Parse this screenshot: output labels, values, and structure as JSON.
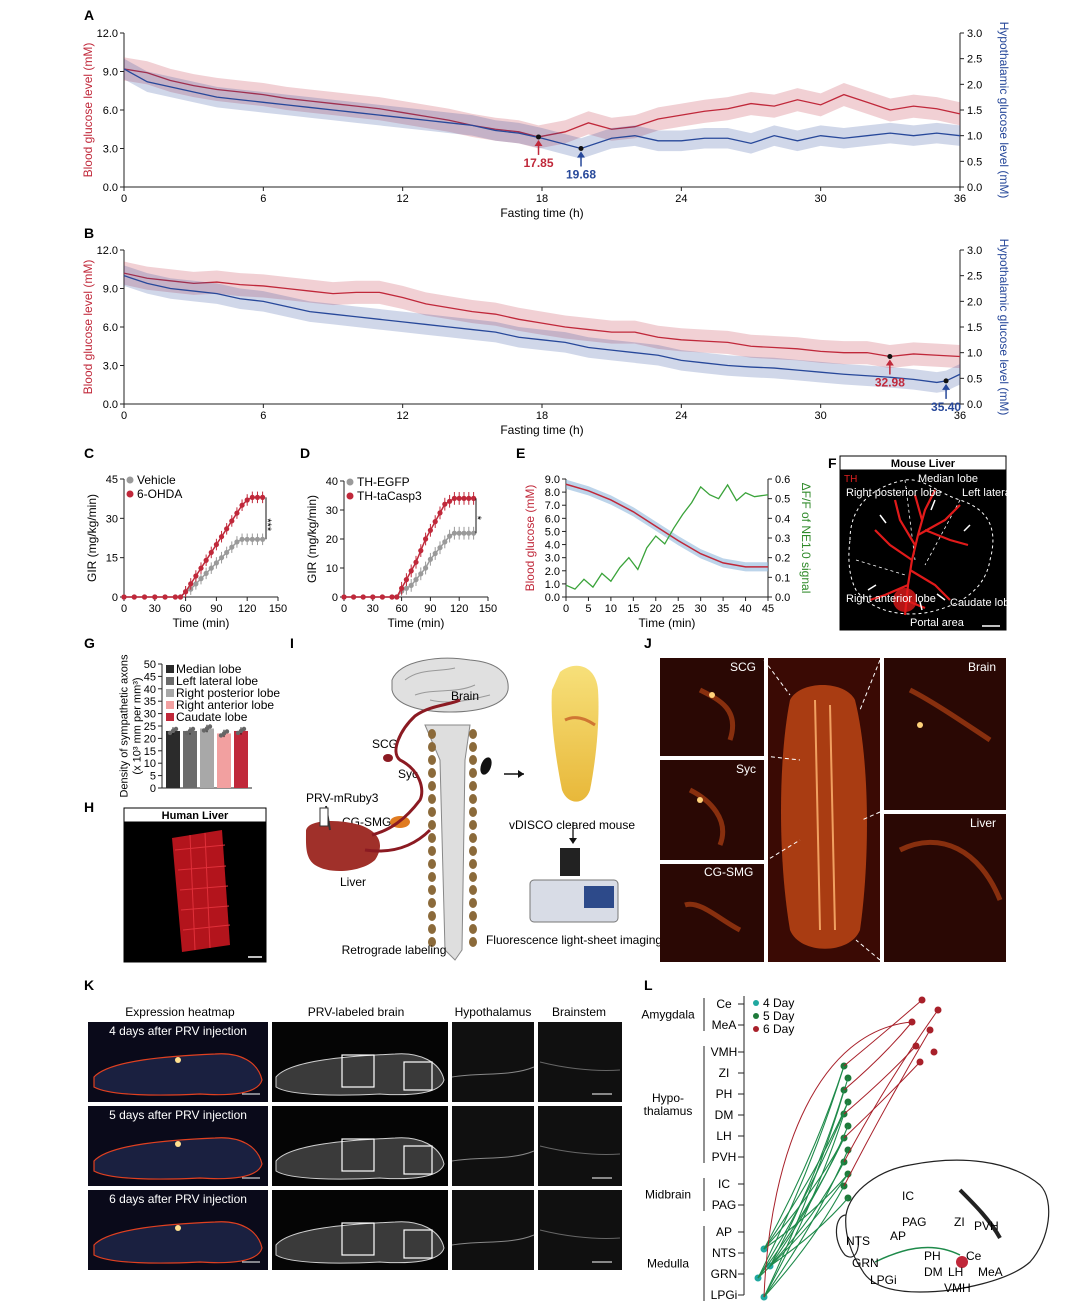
{
  "panels": {
    "A": "A",
    "B": "B",
    "C": "C",
    "D": "D",
    "E": "E",
    "F": "F",
    "G": "G",
    "H": "H",
    "I": "I",
    "J": "J",
    "K": "K",
    "L": "L"
  },
  "colors": {
    "red": "#c0283a",
    "blue": "#27489a",
    "green": "#2f8a2a",
    "grey": "#9a9a9a"
  },
  "chart_data": [
    {
      "id": "A",
      "type": "line",
      "xlabel": "Fasting time (h)",
      "ylabel": "Blood glucose level (mM)",
      "y2label": "Hypothalamic glucose level (mM)",
      "xticks": [
        "0",
        "6",
        "12",
        "18",
        "24",
        "30",
        "36"
      ],
      "yticks": [
        "0.0",
        "3.0",
        "6.0",
        "9.0",
        "12.0"
      ],
      "y2ticks": [
        "0.0",
        "0.5",
        "1.0",
        "1.5",
        "2.0",
        "2.5",
        "3.0"
      ],
      "xlim": [
        0,
        36
      ],
      "ylim": [
        0,
        12
      ],
      "y2lim": [
        0,
        3
      ],
      "series": [
        {
          "name": "Blood glucose",
          "axis": "left",
          "x": [
            0,
            1,
            2,
            3,
            4,
            5,
            6,
            7,
            8,
            9,
            10,
            11,
            12,
            13,
            14,
            15,
            16,
            17,
            17.85,
            19,
            20,
            21,
            22,
            23,
            24,
            25,
            26,
            27,
            28,
            29,
            30,
            31,
            32,
            33,
            34,
            35,
            36
          ],
          "values": [
            9.2,
            8.9,
            8.3,
            7.9,
            7.6,
            7.4,
            7.2,
            6.9,
            6.7,
            6.5,
            6.3,
            6.1,
            5.8,
            5.5,
            5.2,
            4.8,
            4.5,
            4.3,
            3.9,
            4.3,
            5.0,
            4.5,
            4.7,
            5.3,
            5.6,
            5.9,
            6.1,
            6.5,
            6.3,
            6.8,
            6.4,
            7.2,
            6.6,
            6.0,
            6.3,
            6.1,
            5.7
          ]
        },
        {
          "name": "Hypothalamic glucose",
          "axis": "right",
          "x": [
            0,
            1,
            2,
            3,
            4,
            5,
            6,
            7,
            8,
            9,
            10,
            11,
            12,
            13,
            14,
            15,
            16,
            17,
            18,
            19.68,
            21,
            22,
            23,
            24,
            25,
            26,
            27,
            28,
            29,
            30,
            31,
            32,
            33,
            34,
            35,
            36
          ],
          "values": [
            2.3,
            2.05,
            1.95,
            1.85,
            1.75,
            1.7,
            1.65,
            1.6,
            1.55,
            1.5,
            1.45,
            1.4,
            1.35,
            1.3,
            1.25,
            1.2,
            1.1,
            1.05,
            0.95,
            0.75,
            0.95,
            1.0,
            0.9,
            0.9,
            0.95,
            0.95,
            0.85,
            1.0,
            0.9,
            1.0,
            0.95,
            1.0,
            1.05,
            1.0,
            1.05,
            1.0
          ]
        }
      ],
      "annotations": [
        {
          "text": "17.85",
          "x": 17.85,
          "color": "red"
        },
        {
          "text": "19.68",
          "x": 19.68,
          "color": "blue"
        }
      ]
    },
    {
      "id": "B",
      "type": "line",
      "xlabel": "Fasting time (h)",
      "ylabel": "Blood glucose level (mM)",
      "y2label": "Hypothalamic glucose level (mM)",
      "xticks": [
        "0",
        "6",
        "12",
        "18",
        "24",
        "30",
        "36"
      ],
      "yticks": [
        "0.0",
        "3.0",
        "6.0",
        "9.0",
        "12.0"
      ],
      "y2ticks": [
        "0.0",
        "0.5",
        "1.0",
        "1.5",
        "2.0",
        "2.5",
        "3.0"
      ],
      "xlim": [
        0,
        36
      ],
      "ylim": [
        0,
        12
      ],
      "y2lim": [
        0,
        3
      ],
      "series": [
        {
          "name": "Blood glucose",
          "axis": "left",
          "x": [
            0,
            1,
            2,
            3,
            4,
            5,
            6,
            7,
            8,
            9,
            10,
            11,
            12,
            13,
            14,
            15,
            16,
            17,
            18,
            19,
            20,
            21,
            22,
            23,
            24,
            25,
            26,
            27,
            28,
            29,
            30,
            31,
            32,
            32.98,
            34,
            35,
            36
          ],
          "values": [
            10.2,
            9.8,
            9.6,
            9.4,
            9.5,
            9.3,
            9.2,
            9.0,
            8.8,
            8.6,
            8.7,
            8.7,
            8.3,
            7.8,
            7.5,
            7.2,
            7.0,
            6.6,
            6.3,
            6.0,
            5.8,
            5.6,
            5.6,
            5.2,
            5.0,
            4.9,
            4.8,
            4.5,
            4.4,
            4.3,
            4.1,
            4.0,
            4.0,
            3.7,
            3.9,
            3.8,
            3.7
          ]
        },
        {
          "name": "Hypothalamic glucose",
          "axis": "right",
          "x": [
            0,
            1,
            2,
            3,
            4,
            5,
            6,
            7,
            8,
            9,
            10,
            11,
            12,
            13,
            14,
            15,
            16,
            17,
            18,
            19,
            20,
            21,
            22,
            23,
            24,
            25,
            26,
            27,
            28,
            29,
            30,
            31,
            32,
            33,
            34,
            35,
            35.4,
            36
          ],
          "values": [
            2.5,
            2.35,
            2.25,
            2.2,
            2.15,
            2.05,
            2.0,
            1.9,
            1.8,
            1.75,
            1.7,
            1.65,
            1.6,
            1.55,
            1.5,
            1.45,
            1.4,
            1.3,
            1.25,
            1.2,
            1.1,
            1.05,
            1.0,
            0.95,
            0.85,
            0.8,
            0.75,
            0.72,
            0.7,
            0.66,
            0.62,
            0.58,
            0.55,
            0.52,
            0.48,
            0.42,
            0.45,
            0.58
          ]
        }
      ],
      "annotations": [
        {
          "text": "32.98",
          "x": 32.98,
          "color": "red"
        },
        {
          "text": "35.40",
          "x": 35.4,
          "color": "blue"
        }
      ]
    },
    {
      "id": "C",
      "type": "line",
      "xlabel": "Time (min)",
      "ylabel": "GIR (mg/kg/min)",
      "xticks": [
        "0",
        "30",
        "60",
        "90",
        "120",
        "150"
      ],
      "yticks": [
        "0",
        "15",
        "30",
        "45"
      ],
      "xlim": [
        0,
        150
      ],
      "ylim": [
        0,
        45
      ],
      "legend": [
        "Vehicle",
        "6-OHDA"
      ],
      "significance": "***",
      "x": [
        0,
        10,
        20,
        30,
        40,
        50,
        55,
        60,
        65,
        70,
        75,
        80,
        85,
        90,
        95,
        100,
        105,
        110,
        115,
        120,
        125,
        130,
        135
      ],
      "series": [
        {
          "name": "Vehicle",
          "values": [
            0,
            0,
            0,
            0,
            0,
            0,
            0,
            2,
            3,
            5,
            7,
            9,
            11,
            13,
            15,
            17,
            19,
            21,
            22,
            22,
            22,
            22,
            22
          ]
        },
        {
          "name": "6-OHDA",
          "values": [
            0,
            0,
            0,
            0,
            0,
            0,
            0,
            2,
            5,
            8,
            11,
            14,
            17,
            20,
            23,
            26,
            29,
            32,
            35,
            37,
            38,
            38,
            38
          ]
        }
      ]
    },
    {
      "id": "D",
      "type": "line",
      "xlabel": "Time (min)",
      "ylabel": "GIR (mg/kg/min)",
      "xticks": [
        "0",
        "30",
        "60",
        "90",
        "120",
        "150"
      ],
      "yticks": [
        "0",
        "10",
        "20",
        "30",
        "40"
      ],
      "xlim": [
        0,
        150
      ],
      "ylim": [
        0,
        40
      ],
      "legend": [
        "TH-EGFP",
        "TH-taCasp3"
      ],
      "significance": "*",
      "x": [
        0,
        10,
        20,
        30,
        40,
        50,
        55,
        60,
        65,
        70,
        75,
        80,
        85,
        90,
        95,
        100,
        105,
        110,
        115,
        120,
        125,
        130,
        135
      ],
      "series": [
        {
          "name": "TH-EGFP",
          "values": [
            0,
            0,
            0,
            0,
            0,
            0,
            0,
            2,
            3,
            4,
            6,
            8,
            10,
            13,
            15,
            17,
            19,
            21,
            22,
            22,
            22,
            22,
            22
          ]
        },
        {
          "name": "TH-taCasp3",
          "values": [
            0,
            0,
            0,
            0,
            0,
            0,
            0,
            3,
            6,
            9,
            12,
            16,
            20,
            23,
            26,
            29,
            32,
            33,
            34,
            34,
            34,
            34,
            34
          ]
        }
      ]
    },
    {
      "id": "E",
      "type": "line",
      "xlabel": "Time (min)",
      "ylabel": "Blood glucose (mM)",
      "y2label": "ΔF/F of NE1.0 signal",
      "xticks": [
        "0",
        "5",
        "10",
        "15",
        "20",
        "25",
        "30",
        "35",
        "40",
        "45"
      ],
      "yticks": [
        "0.0",
        "1.0",
        "2.0",
        "3.0",
        "4.0",
        "5.0",
        "6.0",
        "7.0",
        "8.0",
        "9.0"
      ],
      "y2ticks": [
        "0.0",
        "0.1",
        "0.2",
        "0.3",
        "0.4",
        "0.5",
        "0.6"
      ],
      "xlim": [
        0,
        45
      ],
      "ylim": [
        0,
        9
      ],
      "y2lim": [
        0,
        0.6
      ],
      "series": [
        {
          "name": "Blood glucose",
          "axis": "left",
          "x": [
            0,
            5,
            10,
            15,
            20,
            25,
            30,
            35,
            40,
            45
          ],
          "values": [
            8.6,
            8.1,
            7.4,
            6.5,
            5.4,
            4.3,
            3.3,
            2.6,
            2.3,
            2.3
          ]
        },
        {
          "name": "ΔF/F NE1.0",
          "axis": "right",
          "x": [
            0,
            2,
            4,
            6,
            8,
            10,
            12,
            14,
            16,
            18,
            20,
            22,
            24,
            26,
            28,
            30,
            32,
            34,
            36,
            38,
            40,
            42,
            45
          ],
          "values": [
            0.06,
            0.04,
            0.09,
            0.05,
            0.12,
            0.08,
            0.15,
            0.2,
            0.14,
            0.25,
            0.31,
            0.27,
            0.35,
            0.42,
            0.48,
            0.56,
            0.52,
            0.5,
            0.57,
            0.49,
            0.53,
            0.51,
            0.52
          ]
        }
      ]
    },
    {
      "id": "G",
      "type": "bar",
      "ylabel": "Density of sympathetic axons (x 10³ mm per mm³)",
      "yticks": [
        "0",
        "5",
        "10",
        "15",
        "20",
        "25",
        "30",
        "35",
        "40",
        "45",
        "50"
      ],
      "ylim": [
        0,
        50
      ],
      "categories": [
        "Median lobe",
        "Left lateral lobe",
        "Right posterior lobe",
        "Right anterior lobe",
        "Caudate lobe"
      ],
      "values": [
        23,
        23,
        24,
        22,
        23
      ],
      "colors": [
        "#2b2b2b",
        "#6b6b6b",
        "#a8a8a8",
        "#f2a0a0",
        "#c0283a"
      ]
    }
  ],
  "figF": {
    "title": "Mouse Liver",
    "stain": "TH",
    "labels": [
      "Right posterior lobe",
      "Median lobe",
      "Left lateral lobe",
      "Right anterior lobe",
      "Caudate lobe",
      "Portal area"
    ]
  },
  "figH": {
    "title": "Human Liver"
  },
  "figI": {
    "labels": [
      "Brain",
      "SCG",
      "Syc",
      "PRV-mRuby3",
      "CG-SMG",
      "Liver",
      "Retrograde labeling",
      "vDISCO cleared mouse",
      "Fluorescence light-sheet imaging"
    ]
  },
  "figJ": {
    "labels": [
      "SCG",
      "Syc",
      "CG-SMG",
      "Brain",
      "Liver"
    ]
  },
  "figK": {
    "headers": [
      "Expression heatmap",
      "PRV-labeled brain",
      "Hypothalamus",
      "Brainstem"
    ],
    "rows": [
      "4 days after PRV injection",
      "5 days after PRV injection",
      "6 days after PRV injection"
    ]
  },
  "figL": {
    "legend": [
      "4 Day",
      "5 Day",
      "6 Day"
    ],
    "groups": [
      {
        "name": "Amygdala",
        "regions": [
          "Ce",
          "MeA"
        ]
      },
      {
        "name": "Hypo-\nthalamus",
        "regions": [
          "VMH",
          "ZI",
          "PH",
          "DM",
          "LH",
          "PVH"
        ]
      },
      {
        "name": "Midbrain",
        "regions": [
          "IC",
          "PAG"
        ]
      },
      {
        "name": "Medulla",
        "regions": [
          "AP",
          "NTS",
          "GRN",
          "LPGi"
        ]
      }
    ],
    "brainLabels": [
      "IC",
      "PAG",
      "AP",
      "NTS",
      "GRN",
      "LPGi",
      "ZI",
      "PVH",
      "PH",
      "DM",
      "LH",
      "Ce",
      "MeA",
      "VMH"
    ]
  }
}
